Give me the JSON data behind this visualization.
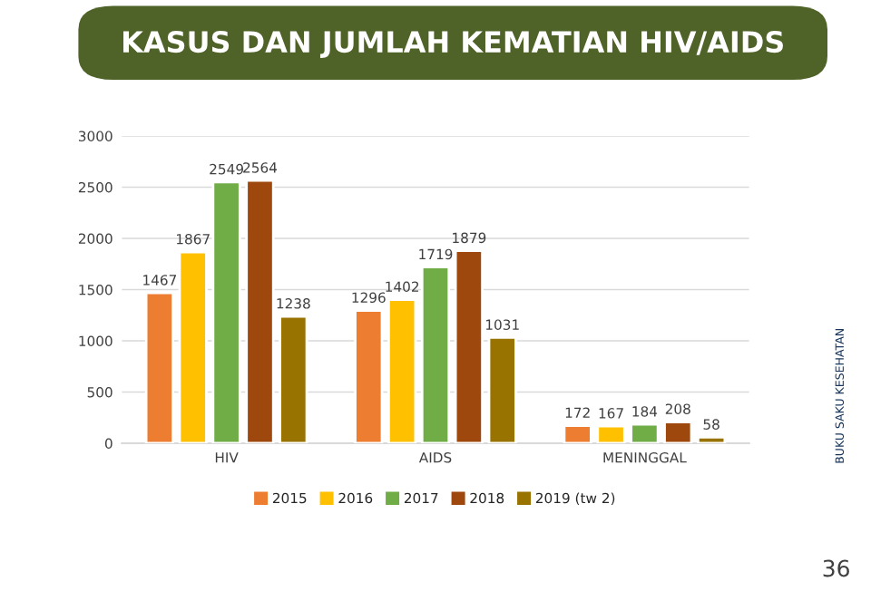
{
  "chart_data": {
    "type": "bar",
    "title": "KASUS DAN JUMLAH KEMATIAN HIV/AIDS",
    "categories": [
      "HIV",
      "AIDS",
      "MENINGGAL"
    ],
    "series": [
      {
        "name": "2015",
        "color": "#ed7d31",
        "values": [
          1467,
          1296,
          172
        ]
      },
      {
        "name": "2016",
        "color": "#ffc000",
        "values": [
          1867,
          1402,
          167
        ]
      },
      {
        "name": "2017",
        "color": "#70ad47",
        "values": [
          2549,
          1719,
          184
        ]
      },
      {
        "name": "2018",
        "color": "#9e480e",
        "values": [
          2564,
          1879,
          208
        ]
      },
      {
        "name": "2019 (tw 2)",
        "color": "#997300",
        "values": [
          1238,
          1031,
          58
        ]
      }
    ],
    "ylim": [
      0,
      3000
    ],
    "yticks": [
      0,
      500,
      1000,
      1500,
      2000,
      2500,
      3000
    ],
    "grid": "y",
    "legend": "bottom",
    "data_labels": true,
    "annotations": [
      "BUKU SAKU KESEHATAN",
      "36"
    ]
  }
}
